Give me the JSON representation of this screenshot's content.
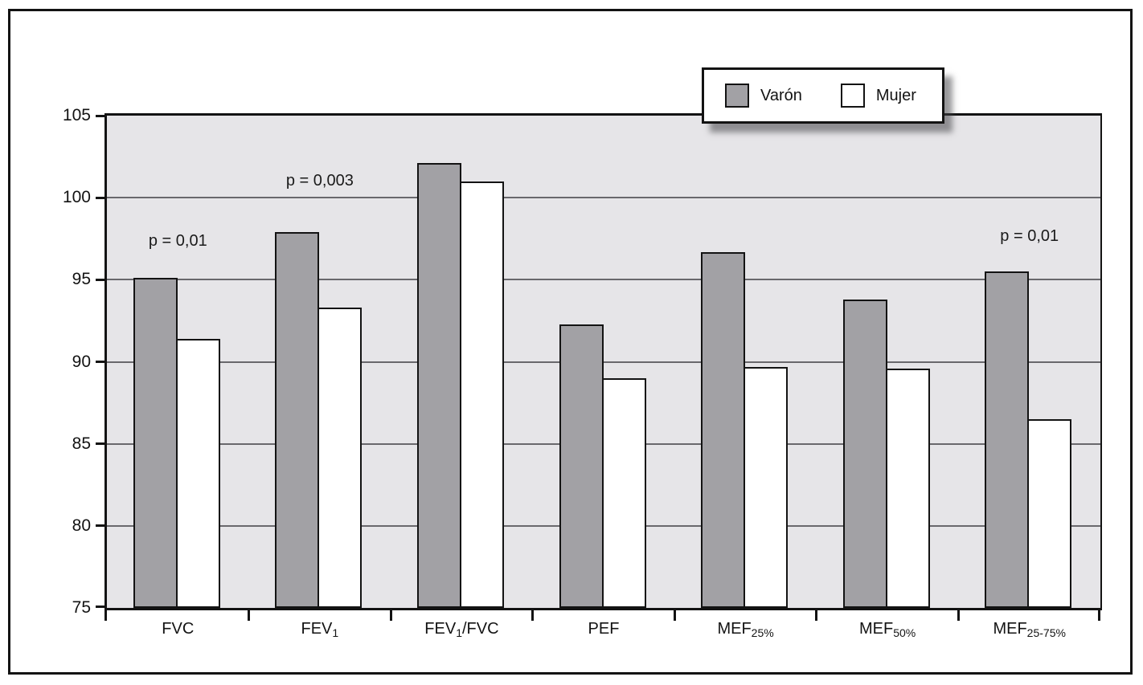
{
  "chart_data": {
    "type": "bar",
    "title": "",
    "xlabel": "",
    "ylabel": "",
    "categories": [
      {
        "segments": [
          {
            "text": "FVC"
          }
        ]
      },
      {
        "segments": [
          {
            "text": "FEV"
          },
          {
            "text": "1",
            "sub": true
          }
        ]
      },
      {
        "segments": [
          {
            "text": "FEV"
          },
          {
            "text": "1",
            "sub": true
          },
          {
            "text": "/FVC"
          }
        ]
      },
      {
        "segments": [
          {
            "text": "PEF"
          }
        ]
      },
      {
        "segments": [
          {
            "text": "MEF"
          },
          {
            "text": "25%",
            "sub": true
          }
        ]
      },
      {
        "segments": [
          {
            "text": "MEF"
          },
          {
            "text": "50%",
            "sub": true
          }
        ]
      },
      {
        "segments": [
          {
            "text": "MEF"
          },
          {
            "text": "25-75%",
            "sub": true
          }
        ]
      }
    ],
    "series": [
      {
        "name": "Varón",
        "color": "#a2a1a5",
        "values": [
          95.1,
          97.9,
          102.1,
          92.3,
          96.7,
          93.8,
          95.5
        ]
      },
      {
        "name": "Mujer",
        "color": "#ffffff",
        "values": [
          91.4,
          93.3,
          101.0,
          89.0,
          89.7,
          89.6,
          86.5
        ]
      }
    ],
    "annotations": [
      {
        "text": "p = 0,01",
        "category_index": 0,
        "y_value": 97.3
      },
      {
        "text": "p = 0,003",
        "category_index": 1,
        "y_value": 101.0
      },
      {
        "text": "p = 0,01",
        "category_index": 6,
        "y_value": 97.6
      }
    ],
    "y_axis": {
      "min": 75,
      "max": 105,
      "tick_values": [
        105,
        100,
        95,
        90,
        85,
        80,
        75
      ],
      "tick_labels": [
        "105",
        "100",
        "95",
        "90",
        "85",
        "80",
        "75"
      ],
      "gridline_values": [
        100,
        95,
        90,
        85,
        80
      ],
      "grid": true
    },
    "legend": {
      "position": "top-right",
      "entries": [
        {
          "label": "Varón",
          "color": "#a2a1a5"
        },
        {
          "label": "Mujer",
          "color": "#ffffff"
        }
      ]
    },
    "colors": {
      "plot_background": "#e6e5e8",
      "gridline": "#69686c",
      "bar_border": "#131313",
      "frame_border": "#131313",
      "text": "#131313"
    }
  }
}
